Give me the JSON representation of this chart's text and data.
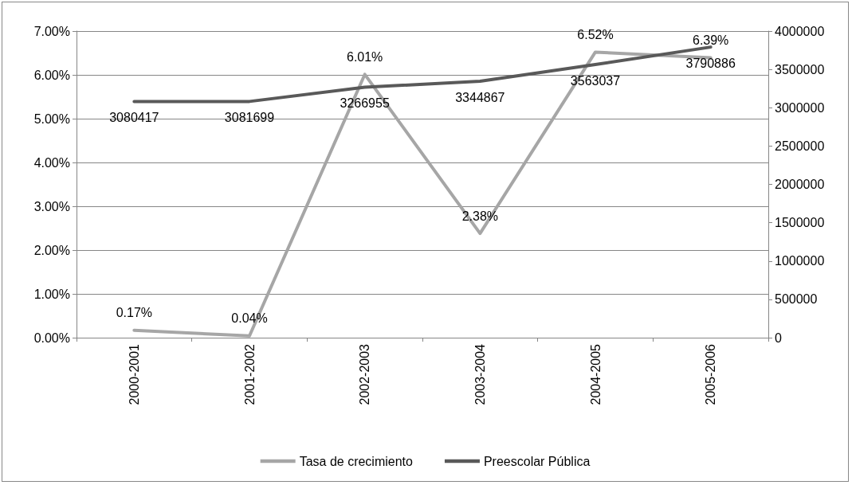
{
  "chart_data": {
    "type": "line",
    "categories": [
      "2000-2001",
      "2001-2002",
      "2002-2003",
      "2003-2004",
      "2004-2005",
      "2005-2006"
    ],
    "series": [
      {
        "name": "Tasa de crecimiento",
        "color": "#a6a6a6",
        "values": [
          0.17,
          0.04,
          6.01,
          2.38,
          6.52,
          6.39
        ],
        "value_labels": [
          "0.17%",
          "0.04%",
          "6.01%",
          "2.38%",
          "6.52%",
          "6.39%"
        ]
      },
      {
        "name": "Preescolar Pública",
        "color": "#595959",
        "axis": "y2",
        "values": [
          3080417,
          3081699,
          3266955,
          3344867,
          3563037,
          3790886
        ],
        "value_labels": [
          "3080417",
          "3081699",
          "3266955",
          "3344867",
          "3563037",
          "3790886"
        ]
      }
    ],
    "ylim": [
      0,
      7
    ],
    "yticks": [
      {
        "value": 0,
        "label": "0.00%"
      },
      {
        "value": 1,
        "label": "1.00%"
      },
      {
        "value": 2,
        "label": "2.00%"
      },
      {
        "value": 3,
        "label": "3.00%"
      },
      {
        "value": 4,
        "label": "4.00%"
      },
      {
        "value": 5,
        "label": "5.00%"
      },
      {
        "value": 6,
        "label": "6.00%"
      },
      {
        "value": 7,
        "label": "7.00%"
      }
    ],
    "y2lim": [
      0,
      4000000
    ],
    "y2ticks": [
      0,
      500000,
      1000000,
      1500000,
      2000000,
      2500000,
      3000000,
      3500000,
      4000000
    ],
    "grid": "y",
    "legend": "bottom",
    "marker": "none",
    "line_style": "solid"
  }
}
